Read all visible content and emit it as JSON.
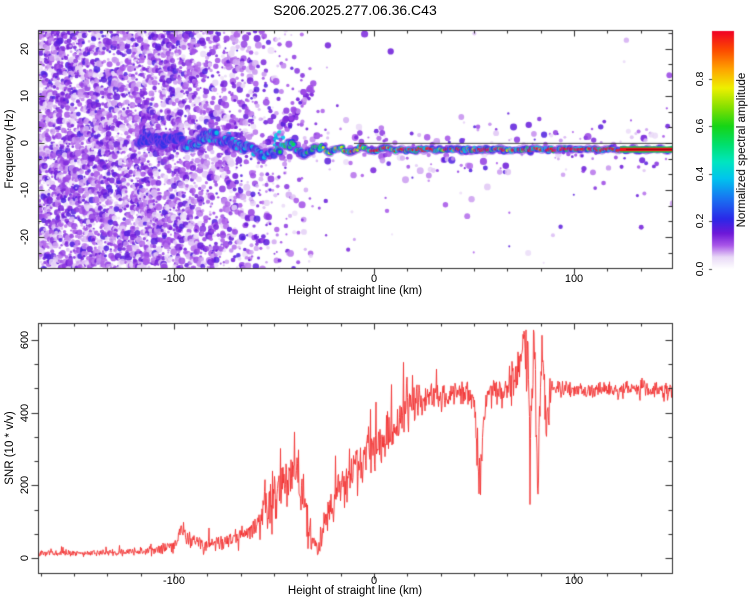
{
  "title": "S206.2025.277.06.36.C43",
  "frame_color": "#2b2b2b",
  "top_panel": {
    "xlabel": "Height of straight line (km)",
    "ylabel": "Frequency (Hz)",
    "xlim": [
      -168,
      149
    ],
    "ylim": [
      -26.6,
      24.0
    ],
    "xticks": [
      -100,
      0,
      100
    ],
    "yticks": [
      20,
      10,
      0,
      -10,
      -20
    ],
    "x_minor_step": 16.6667,
    "y_minor_step": 3.3333
  },
  "colorbar": {
    "label": "Normalized spectral amplitude",
    "tick_labels": [
      "0.0",
      "0.2",
      "0.4",
      "0.6",
      "0.8"
    ],
    "tick_values": [
      0,
      0.2,
      0.4,
      0.6,
      0.8
    ],
    "gradient": [
      [
        0.0,
        "#ffffff"
      ],
      [
        0.05,
        "#e9d9f7"
      ],
      [
        0.1,
        "#a855e8"
      ],
      [
        0.15,
        "#6d18d8"
      ],
      [
        0.21,
        "#2b28e8"
      ],
      [
        0.3,
        "#1877f2"
      ],
      [
        0.38,
        "#00c4ee"
      ],
      [
        0.45,
        "#00e6c0"
      ],
      [
        0.52,
        "#00e070"
      ],
      [
        0.6,
        "#16d516"
      ],
      [
        0.68,
        "#86e000"
      ],
      [
        0.76,
        "#eef000"
      ],
      [
        0.84,
        "#ffa300"
      ],
      [
        0.92,
        "#fc4a00"
      ],
      [
        1.0,
        "#f10026"
      ]
    ]
  },
  "bottom_panel": {
    "xlabel": "Height of straight line (km)",
    "ylabel": "SNR (10 * v/v)",
    "xlim": [
      -168,
      149
    ],
    "ylim": [
      -41,
      646
    ],
    "xticks": [
      -100,
      0,
      100
    ],
    "yticks": [
      0,
      200,
      400,
      600
    ],
    "x_minor_step": 16.6667,
    "y_minor_step": 66.6667
  },
  "chart_data": [
    {
      "type": "heatmap",
      "title": "S206.2025.277.06.36.C43",
      "xlabel": "Height of straight line (km)",
      "ylabel": "Frequency (Hz)",
      "colorbar_label": "Normalized spectral amplitude",
      "xlim": [
        -168,
        149
      ],
      "ylim": [
        -26.6,
        24.0
      ],
      "legend_position": "right-colorbar",
      "description": "Radio occultation Doppler spectrogram: diffuse violet noise fills all frequencies for heights below about -60 km, a wiggly blue/cyan signal band near 0 Hz emerges near -118 km, and above -30 km it collapses to a sharp ridge near -1.4 Hz whose amplitude grows to saturation (red) at the right edge; thin dark reference line at 0 Hz.",
      "noise_extent_km": [
        -168,
        -25
      ],
      "ridge_columns": [
        "height_km",
        "frequency_hz",
        "normalized_amplitude"
      ],
      "ridge": [
        [
          -118,
          0.5,
          0.33
        ],
        [
          -112,
          1.2,
          0.36
        ],
        [
          -106,
          0.2,
          0.38
        ],
        [
          -100,
          1.0,
          0.4
        ],
        [
          -95,
          0.0,
          0.42
        ],
        [
          -90,
          -0.6,
          0.45
        ],
        [
          -85,
          1.0,
          0.48
        ],
        [
          -80,
          1.6,
          0.5
        ],
        [
          -75,
          0.6,
          0.52
        ],
        [
          -70,
          0.2,
          0.54
        ],
        [
          -66,
          -0.8,
          0.52
        ],
        [
          -62,
          -1.2,
          0.52
        ],
        [
          -58,
          -2.2,
          0.52
        ],
        [
          -54,
          -2.9,
          0.53
        ],
        [
          -50,
          -2.0,
          0.55
        ],
        [
          -46,
          -1.0,
          0.57
        ],
        [
          -42,
          -0.4,
          0.6
        ],
        [
          -39,
          -1.2,
          0.6
        ],
        [
          -36,
          -2.6,
          0.62
        ],
        [
          -33,
          -2.3,
          0.65
        ],
        [
          -30,
          -1.2,
          0.68
        ],
        [
          -26,
          -0.9,
          0.72
        ],
        [
          -22,
          -1.8,
          0.74
        ],
        [
          -18,
          -1.3,
          0.76
        ],
        [
          -12,
          -1.8,
          0.78
        ],
        [
          -6,
          -1.1,
          0.8
        ],
        [
          0,
          -1.5,
          0.82
        ],
        [
          8,
          -1.2,
          0.84
        ],
        [
          16,
          -1.6,
          0.85
        ],
        [
          24,
          -1.3,
          0.86
        ],
        [
          32,
          -1.5,
          0.88
        ],
        [
          40,
          -1.3,
          0.89
        ],
        [
          50,
          -1.5,
          0.9
        ],
        [
          60,
          -1.3,
          0.91
        ],
        [
          70,
          -1.5,
          0.92
        ],
        [
          80,
          -1.3,
          0.93
        ],
        [
          90,
          -1.4,
          0.94
        ],
        [
          100,
          -1.3,
          0.95
        ],
        [
          110,
          -1.4,
          0.96
        ],
        [
          120,
          -1.4,
          0.97
        ],
        [
          130,
          -1.4,
          0.98
        ],
        [
          140,
          -1.4,
          0.99
        ],
        [
          149,
          -1.4,
          1.0
        ]
      ],
      "streaks": [
        {
          "from_h": -52,
          "from_f": -1.0,
          "to_h": -30,
          "to_f": 12.0,
          "blobs": 60
        },
        {
          "from_h": -74,
          "from_f": 0.0,
          "to_h": -68,
          "to_f": 7.0,
          "blobs": 22
        }
      ],
      "zero_line": {
        "frequency_hz": 0,
        "from_h": -10,
        "to_h": 149,
        "color": "#303030"
      }
    },
    {
      "type": "line",
      "xlabel": "Height of straight line (km)",
      "ylabel": "SNR (10 * v/v)",
      "series_color": "#f23030",
      "xlim": [
        -168,
        149
      ],
      "ylim": [
        -41,
        646
      ],
      "grid": false,
      "points_columns": [
        "height_km",
        "snr"
      ],
      "points": [
        [
          -168,
          14
        ],
        [
          -150,
          14
        ],
        [
          -135,
          15
        ],
        [
          -120,
          16
        ],
        [
          -110,
          22
        ],
        [
          -100,
          32
        ],
        [
          -96,
          80
        ],
        [
          -92,
          50
        ],
        [
          -86,
          38
        ],
        [
          -80,
          42
        ],
        [
          -74,
          48
        ],
        [
          -68,
          55
        ],
        [
          -62,
          70
        ],
        [
          -56,
          110
        ],
        [
          -50,
          160
        ],
        [
          -46,
          200
        ],
        [
          -42,
          240
        ],
        [
          -38,
          230
        ],
        [
          -34,
          120
        ],
        [
          -31,
          45
        ],
        [
          -28,
          28
        ],
        [
          -26,
          80
        ],
        [
          -23,
          120
        ],
        [
          -20,
          150
        ],
        [
          -17,
          185
        ],
        [
          -14,
          205
        ],
        [
          -11,
          235
        ],
        [
          -8,
          255
        ],
        [
          -5,
          270
        ],
        [
          -2,
          285
        ],
        [
          2,
          305
        ],
        [
          6,
          330
        ],
        [
          10,
          355
        ],
        [
          14,
          390
        ],
        [
          18,
          420
        ],
        [
          22,
          435
        ],
        [
          26,
          445
        ],
        [
          30,
          435
        ],
        [
          34,
          452
        ],
        [
          38,
          445
        ],
        [
          42,
          455
        ],
        [
          46,
          448
        ],
        [
          50,
          440
        ],
        [
          53,
          225
        ],
        [
          56,
          450
        ],
        [
          60,
          462
        ],
        [
          64,
          455
        ],
        [
          68,
          468
        ],
        [
          71,
          478
        ],
        [
          74,
          540
        ],
        [
          76,
          615
        ],
        [
          78,
          280
        ],
        [
          80,
          600
        ],
        [
          82,
          190
        ],
        [
          84,
          555
        ],
        [
          86,
          350
        ],
        [
          88,
          470
        ],
        [
          91,
          455
        ],
        [
          94,
          465
        ],
        [
          98,
          458
        ],
        [
          102,
          462
        ],
        [
          108,
          458
        ],
        [
          114,
          464
        ],
        [
          120,
          458
        ],
        [
          126,
          463
        ],
        [
          132,
          459
        ],
        [
          138,
          464
        ],
        [
          144,
          459
        ],
        [
          149,
          462
        ]
      ],
      "noise_spread": [
        [
          -168,
          13
        ],
        [
          -140,
          13
        ],
        [
          -120,
          15
        ],
        [
          -105,
          22
        ],
        [
          -96,
          45
        ],
        [
          -88,
          28
        ],
        [
          -78,
          30
        ],
        [
          -68,
          40
        ],
        [
          -60,
          55
        ],
        [
          -52,
          95
        ],
        [
          -46,
          115
        ],
        [
          -40,
          110
        ],
        [
          -34,
          80
        ],
        [
          -30,
          40
        ],
        [
          -27,
          60
        ],
        [
          -22,
          85
        ],
        [
          -16,
          95
        ],
        [
          -10,
          105
        ],
        [
          -4,
          110
        ],
        [
          2,
          115
        ],
        [
          8,
          110
        ],
        [
          14,
          100
        ],
        [
          20,
          80
        ],
        [
          26,
          60
        ],
        [
          32,
          55
        ],
        [
          40,
          55
        ],
        [
          46,
          60
        ],
        [
          52,
          90
        ],
        [
          56,
          50
        ],
        [
          62,
          45
        ],
        [
          68,
          50
        ],
        [
          72,
          90
        ],
        [
          76,
          170
        ],
        [
          80,
          200
        ],
        [
          84,
          160
        ],
        [
          88,
          60
        ],
        [
          92,
          40
        ],
        [
          96,
          35
        ],
        [
          102,
          32
        ],
        [
          110,
          30
        ],
        [
          120,
          30
        ],
        [
          135,
          30
        ],
        [
          149,
          32
        ]
      ]
    }
  ]
}
